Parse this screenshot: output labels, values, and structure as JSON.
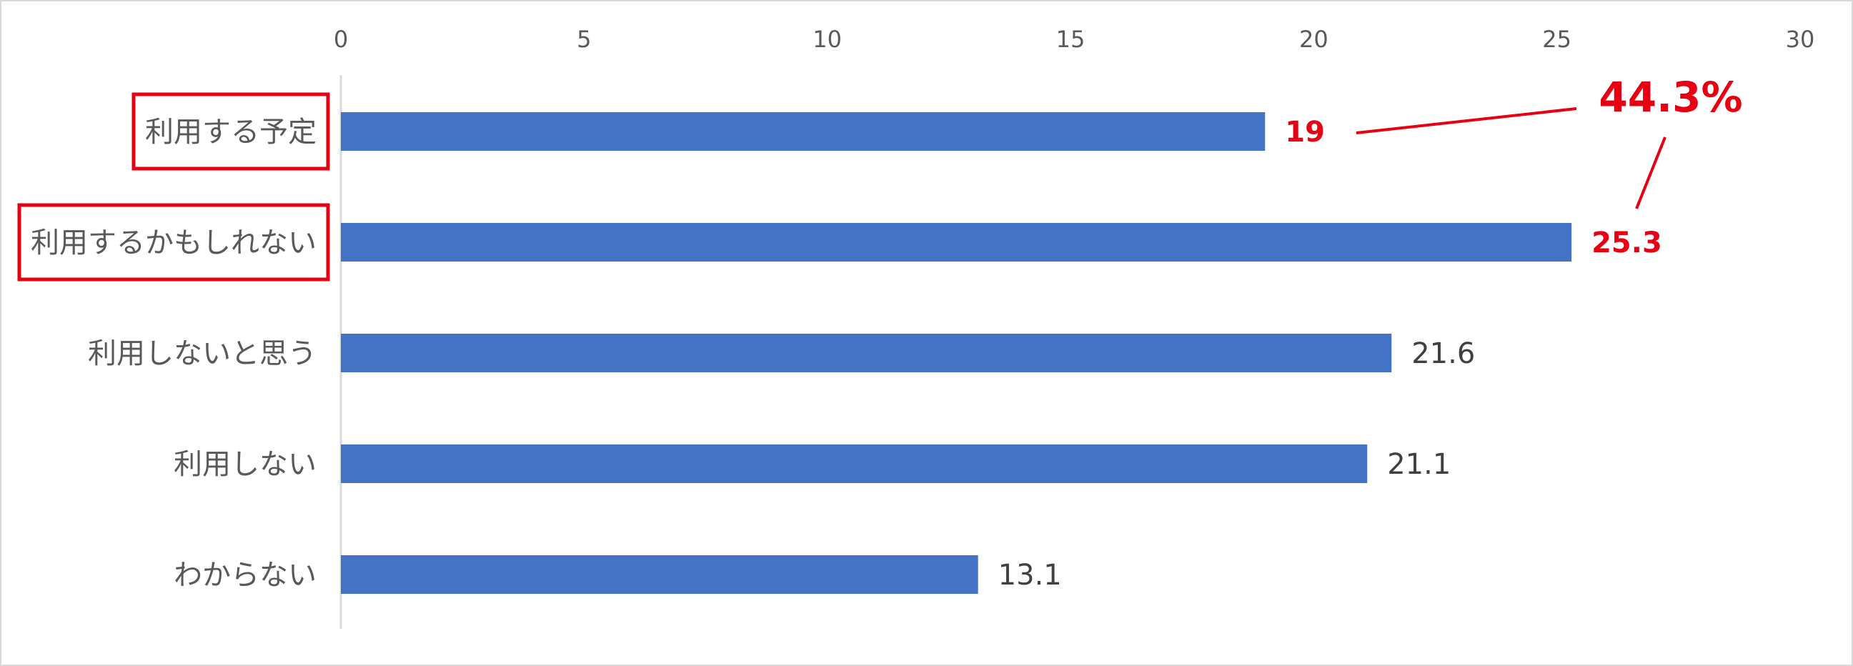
{
  "chart_data": {
    "type": "bar",
    "orientation": "horizontal",
    "categories": [
      "利用する予定",
      "利用するかもしれない",
      "利用しないと思う",
      "利用しない",
      "わからない"
    ],
    "values": [
      19,
      25.3,
      21.6,
      21.1,
      13.1
    ],
    "value_labels": [
      "19",
      "25.3",
      "21.6",
      "21.1",
      "13.1"
    ],
    "highlighted_categories": [
      0,
      1
    ],
    "xlim": [
      0,
      30
    ],
    "x_ticks": [
      0,
      5,
      10,
      15,
      20,
      25,
      30
    ],
    "x_tick_labels": [
      "0",
      "5",
      "10",
      "15",
      "20",
      "25",
      "30"
    ],
    "x_axis_position": "top",
    "grid": false,
    "annotation": {
      "text": "44.3%",
      "applies_to": [
        0,
        1
      ]
    },
    "colors": {
      "bar": "#4472c4",
      "highlight": "#e60012",
      "axis": "#d9d9d9",
      "frame": "#d9d9d9"
    }
  }
}
